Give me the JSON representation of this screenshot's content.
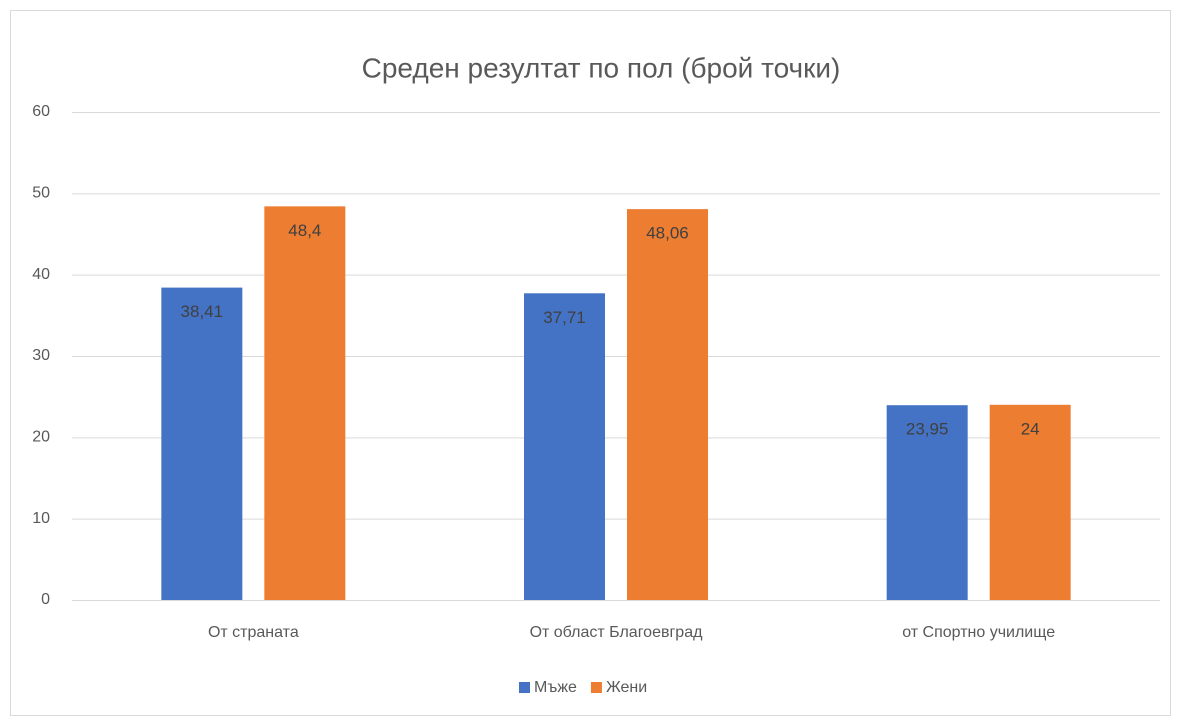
{
  "chart_data": {
    "type": "bar",
    "title": "Среден резултат по пол (брой точки)",
    "categories": [
      "От страната",
      "От област Благоевград",
      "от Спортно училище"
    ],
    "series": [
      {
        "name": "Мъже",
        "color": "#4472c4",
        "values": [
          38.41,
          37.71,
          23.95
        ],
        "value_labels": [
          "38,41",
          "37,71",
          "23,95"
        ]
      },
      {
        "name": "Жени",
        "color": "#ed7d31",
        "values": [
          48.4,
          48.06,
          24
        ],
        "value_labels": [
          "48,4",
          "48,06",
          "24"
        ]
      }
    ],
    "ylim": [
      0,
      60
    ],
    "yticks": [
      0,
      10,
      20,
      30,
      40,
      50,
      60
    ],
    "grid": true,
    "legend": "bottom"
  }
}
